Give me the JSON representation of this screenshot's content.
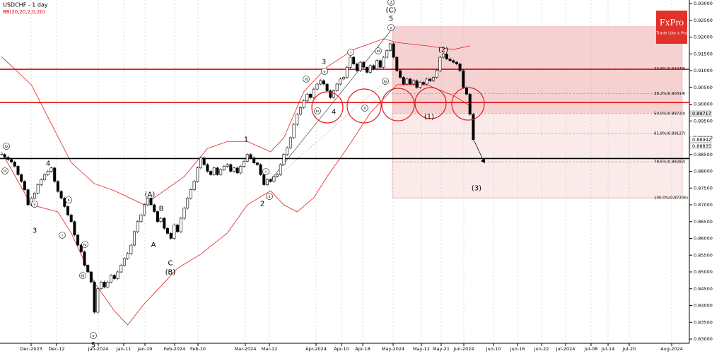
{
  "chart_data": {
    "type": "candlestick",
    "title": "USDCHF - 1 day",
    "subtitle": "BB(20,20,2,0,20)",
    "brand": "FxPro",
    "tagline": "Trade Like a Pro",
    "ylim": [
      0.83,
      0.93
    ],
    "yticks": [
      {
        "value": 0.93,
        "label": "0.93000"
      },
      {
        "value": 0.925,
        "label": "0.92500"
      },
      {
        "value": 0.92,
        "label": "0.92000"
      },
      {
        "value": 0.915,
        "label": "0.91500"
      },
      {
        "value": 0.91,
        "label": "0.91000"
      },
      {
        "value": 0.905,
        "label": "0.90500"
      },
      {
        "value": 0.9,
        "label": "0.90000"
      },
      {
        "value": 0.895,
        "label": "0.89500"
      },
      {
        "value": 0.89,
        "label": "0.89000"
      },
      {
        "value": 0.885,
        "label": "0.88500"
      },
      {
        "value": 0.88,
        "label": "0.88000"
      },
      {
        "value": 0.875,
        "label": "0.87500"
      },
      {
        "value": 0.87,
        "label": "0.87000"
      },
      {
        "value": 0.865,
        "label": "0.86500"
      },
      {
        "value": 0.86,
        "label": "0.86000"
      },
      {
        "value": 0.855,
        "label": "0.85500"
      },
      {
        "value": 0.85,
        "label": "0.85000"
      },
      {
        "value": 0.845,
        "label": "0.84500"
      },
      {
        "value": 0.84,
        "label": "0.84000"
      },
      {
        "value": 0.835,
        "label": "0.83500"
      },
      {
        "value": 0.83,
        "label": "0.83000"
      }
    ],
    "xticks": [
      "Dec-2023",
      "Dec-12",
      "Jan-2024",
      "Jan-11",
      "Jan-19",
      "Feb-2024",
      "Feb-10",
      "Mar-2024",
      "Mar-12",
      "Apr-2024",
      "Apr-10",
      "Apr-18",
      "May-2024",
      "May-12",
      "May-21",
      "Jun-2024",
      "Jun-10",
      "Jun-16",
      "Jun-22",
      "Jul-2024",
      "Jul-08",
      "Jul-14",
      "Jul-20",
      "Aug-2024"
    ],
    "close": [
      0.885,
      0.8842,
      0.8835,
      0.8828,
      0.8815,
      0.879,
      0.877,
      0.8745,
      0.87,
      0.872,
      0.8735,
      0.876,
      0.8775,
      0.879,
      0.88,
      0.881,
      0.877,
      0.874,
      0.872,
      0.8695,
      0.867,
      0.865,
      0.861,
      0.858,
      0.856,
      0.852,
      0.85,
      0.847,
      0.838,
      0.845,
      0.847,
      0.8455,
      0.847,
      0.849,
      0.848,
      0.85,
      0.852,
      0.854,
      0.8555,
      0.858,
      0.862,
      0.865,
      0.867,
      0.87,
      0.872,
      0.87,
      0.868,
      0.865,
      0.866,
      0.863,
      0.8615,
      0.86,
      0.864,
      0.862,
      0.866,
      0.869,
      0.872,
      0.8745,
      0.877,
      0.881,
      0.884,
      0.882,
      0.88,
      0.879,
      0.881,
      0.879,
      0.8805,
      0.8815,
      0.882,
      0.88,
      0.881,
      0.8795,
      0.8815,
      0.883,
      0.885,
      0.884,
      0.8825,
      0.882,
      0.879,
      0.876,
      0.8775,
      0.877,
      0.8785,
      0.879,
      0.882,
      0.885,
      0.887,
      0.89,
      0.894,
      0.897,
      0.899,
      0.901,
      0.903,
      0.902,
      0.9045,
      0.906,
      0.907,
      0.906,
      0.904,
      0.902,
      0.904,
      0.906,
      0.9075,
      0.908,
      0.911,
      0.914,
      0.912,
      0.91,
      0.9125,
      0.911,
      0.9095,
      0.9115,
      0.9105,
      0.913,
      0.911,
      0.914,
      0.916,
      0.918,
      0.914,
      0.91,
      0.908,
      0.906,
      0.9075,
      0.906,
      0.907,
      0.905,
      0.9065,
      0.906,
      0.9075,
      0.907,
      0.908,
      0.91,
      0.914,
      0.915,
      0.9135,
      0.913,
      0.9125,
      0.912,
      0.91,
      0.905,
      0.903,
      0.897,
      0.8894
    ],
    "bands": [
      {
        "name": "upper",
        "color": "#e02020",
        "x": [
          0,
          9,
          15,
          21,
          28,
          34,
          43,
          49,
          55,
          62,
          68,
          74,
          81,
          85,
          91,
          98,
          106,
          115,
          119,
          128,
          136,
          141
        ],
        "values": [
          0.9142,
          0.9058,
          0.8942,
          0.8826,
          0.8763,
          0.8742,
          0.87,
          0.8742,
          0.8784,
          0.8868,
          0.8889,
          0.8889,
          0.8858,
          0.89,
          0.9037,
          0.9111,
          0.9163,
          0.9195,
          0.9184,
          0.9174,
          0.9163,
          0.9174
        ]
      },
      {
        "name": "lower",
        "color": "#e02020",
        "x": [
          0,
          9,
          17,
          21,
          28,
          34,
          38,
          43,
          49,
          53,
          60,
          68,
          74,
          81,
          85,
          89,
          94,
          98,
          104,
          111,
          119,
          128,
          136,
          141
        ],
        "values": [
          0.8858,
          0.87,
          0.8679,
          0.8616,
          0.8468,
          0.8384,
          0.8342,
          0.8405,
          0.8468,
          0.8511,
          0.8553,
          0.8616,
          0.87,
          0.8742,
          0.87,
          0.8679,
          0.8721,
          0.8784,
          0.8868,
          0.8974,
          0.9058,
          0.9058,
          0.9026,
          0.8995
        ]
      }
    ],
    "levels": [
      {
        "value": 0.9104,
        "color": "#e00000"
      },
      {
        "value": 0.9005,
        "color": "#e00000"
      },
      {
        "value": 0.8838,
        "color": "#000000"
      }
    ],
    "fib_levels": [
      {
        "value": 0.91048,
        "label": "23.6%(0.91048)"
      },
      {
        "value": 0.90314,
        "label": "38.2%(0.90314)"
      },
      {
        "value": 0.8972,
        "label": "50.0%(0.89720)"
      },
      {
        "value": 0.89127,
        "label": "61.8%(0.89127)"
      },
      {
        "value": 0.88282,
        "label": "78.6%(0.88282)"
      },
      {
        "value": 0.87206,
        "label": "100.0%(0.87206)"
      }
    ],
    "price_tags": [
      0.89717,
      0.88942,
      0.88835
    ],
    "annotations": [
      {
        "text": "iv",
        "circled": true
      },
      {
        "text": "iii",
        "circled": true
      },
      {
        "text": "4",
        "circled": false
      },
      {
        "text": "v",
        "circled": true
      },
      {
        "text": "3",
        "circled": false
      },
      {
        "text": "i",
        "circled": true
      },
      {
        "text": "ii",
        "circled": true
      },
      {
        "text": "iv",
        "circled": true
      },
      {
        "text": "iii",
        "circled": true
      },
      {
        "text": "v",
        "circled": true
      },
      {
        "text": "5",
        "circled": false
      },
      {
        "text": "(A)",
        "circled": false
      },
      {
        "text": "B",
        "circled": false
      },
      {
        "text": "A",
        "circled": false
      },
      {
        "text": "C",
        "circled": false
      },
      {
        "text": "(B)",
        "circled": false
      },
      {
        "text": "1",
        "circled": false
      },
      {
        "text": "2",
        "circled": false
      },
      {
        "text": "i",
        "circled": true
      },
      {
        "text": "ii",
        "circled": true
      },
      {
        "text": "iii",
        "circled": true
      },
      {
        "text": "3",
        "circled": false
      },
      {
        "text": "v",
        "circled": true
      },
      {
        "text": "iv",
        "circled": true
      },
      {
        "text": "4",
        "circled": false
      },
      {
        "text": "i",
        "circled": true
      },
      {
        "text": "ii",
        "circled": true
      },
      {
        "text": "iii",
        "circled": true
      },
      {
        "text": "iv",
        "circled": true
      },
      {
        "text": "2",
        "circled": true
      },
      {
        "text": "(C)",
        "circled": false
      },
      {
        "text": "5",
        "circled": false
      },
      {
        "text": "v",
        "circled": true
      },
      {
        "text": "(2)",
        "circled": false
      },
      {
        "text": "(1)",
        "circled": false
      },
      {
        "text": "(3)",
        "circled": false
      }
    ]
  }
}
